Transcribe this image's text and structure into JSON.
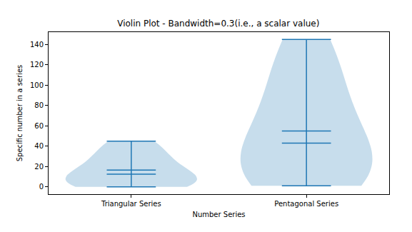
{
  "chart_data": {
    "type": "violin",
    "title": "Violin Plot - Bandwidth=0.3(i.e., a scalar value)",
    "x_label": "Number Series",
    "y_label": "Specific number in a series",
    "categories": [
      "Triangular Series",
      "Pentagonal Series"
    ],
    "values": [
      [
        0,
        1,
        3,
        6,
        10,
        15,
        21,
        28,
        36,
        45
      ],
      [
        1,
        5,
        12,
        22,
        35,
        51,
        70,
        92,
        117,
        145
      ]
    ],
    "means": [
      16.5,
      55
    ],
    "medians": [
      12.5,
      43
    ],
    "color": "#1f77b4",
    "ylim": [
      -7.25,
      152.25
    ],
    "yticks": [
      0,
      20,
      40,
      60,
      80,
      100,
      120,
      140
    ],
    "grid": false
  }
}
